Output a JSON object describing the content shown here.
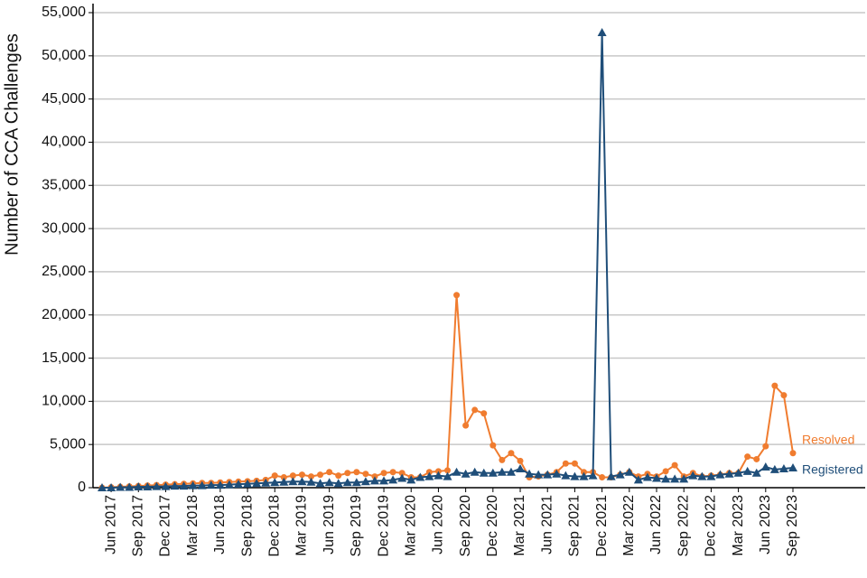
{
  "chart_data": {
    "type": "line",
    "y_label": "Number of CCA Challenges",
    "categories": [
      null,
      "Jun 2017",
      null,
      null,
      "Sep 2017",
      null,
      null,
      "Dec 2017",
      null,
      null,
      "Mar 2018",
      null,
      null,
      "Jun 2018",
      null,
      null,
      "Sep 2018",
      null,
      null,
      "Dec 2018",
      null,
      null,
      "Mar 2019",
      null,
      null,
      "Jun 2019",
      null,
      null,
      "Sep 2019",
      null,
      null,
      "Dec 2019",
      null,
      null,
      "Mar 2020",
      null,
      null,
      "Jun 2020",
      null,
      null,
      "Sep 2020",
      null,
      null,
      "Dec 2020",
      null,
      null,
      "Mar 2021",
      null,
      null,
      "Jun 2021",
      null,
      null,
      "Sep 2021",
      null,
      null,
      "Dec 2021",
      null,
      null,
      "Mar 2022",
      null,
      null,
      "Jun 2022",
      null,
      null,
      "Sep 2022",
      null,
      null,
      "Dec 2022",
      null,
      null,
      "Mar 2023",
      null,
      null,
      "Jun 2023",
      null,
      null,
      "Sep 2023"
    ],
    "series": [
      {
        "name": "Resolved",
        "color": "#f07c2f",
        "marker": "circle",
        "values": [
          0,
          50,
          100,
          150,
          200,
          250,
          300,
          350,
          400,
          450,
          500,
          550,
          550,
          600,
          650,
          700,
          750,
          800,
          900,
          1400,
          1200,
          1400,
          1500,
          1300,
          1500,
          1800,
          1400,
          1700,
          1800,
          1600,
          1300,
          1700,
          1800,
          1700,
          1200,
          1200,
          1800,
          1900,
          2000,
          22300,
          7200,
          9000,
          8600,
          4900,
          3200,
          4000,
          3100,
          1200,
          1300,
          1500,
          1800,
          2800,
          2800,
          1800,
          1800,
          1200,
          1200,
          1500,
          1800,
          1300,
          1600,
          1300,
          1900,
          2600,
          1300,
          1700,
          1300,
          1400,
          1500,
          1700,
          1700,
          3600,
          3300,
          4800,
          11800,
          10700,
          4000
        ]
      },
      {
        "name": "Registered",
        "color": "#1f4e79",
        "marker": "triangle",
        "values": [
          0,
          0,
          50,
          50,
          100,
          100,
          150,
          150,
          200,
          200,
          250,
          250,
          300,
          300,
          350,
          400,
          450,
          500,
          550,
          600,
          650,
          700,
          700,
          650,
          500,
          600,
          500,
          600,
          600,
          700,
          800,
          800,
          900,
          1100,
          900,
          1200,
          1300,
          1400,
          1300,
          1800,
          1600,
          1800,
          1700,
          1700,
          1800,
          1800,
          2200,
          1600,
          1500,
          1500,
          1600,
          1400,
          1300,
          1300,
          1400,
          52700,
          1300,
          1500,
          1800,
          900,
          1200,
          1100,
          1000,
          1000,
          1000,
          1400,
          1300,
          1300,
          1500,
          1600,
          1700,
          1900,
          1700,
          2400,
          2100,
          2200,
          2300
        ]
      }
    ],
    "ylim": [
      0,
      55000
    ],
    "yticks": [
      0,
      {
        "value": 5000,
        "label": "5,000"
      },
      {
        "value": 10000,
        "label": "10,000"
      },
      {
        "value": 15000,
        "label": "15,000"
      },
      {
        "value": 20000,
        "label": "20,000"
      },
      {
        "value": 25000,
        "label": "25,000"
      },
      {
        "value": 30000,
        "label": "30,000"
      },
      {
        "value": 35000,
        "label": "35,000"
      },
      {
        "value": 40000,
        "label": "40,000"
      },
      {
        "value": 45000,
        "label": "45,000"
      },
      {
        "value": 50000,
        "label": "50,000"
      },
      {
        "value": 55000,
        "label": "55,000"
      }
    ],
    "grid": true
  }
}
